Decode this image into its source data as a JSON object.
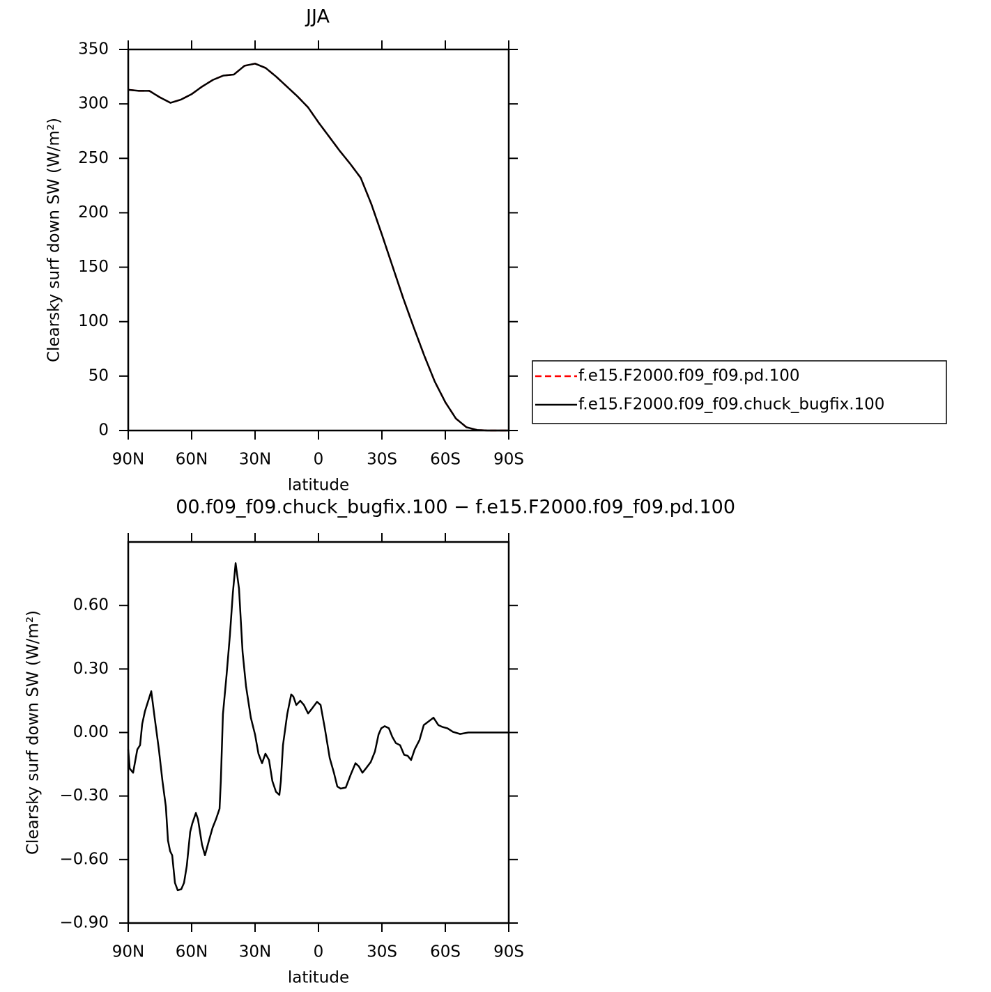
{
  "chart_data": [
    {
      "type": "line",
      "title": "JJA",
      "xlabel": "latitude",
      "ylabel": "Clearsky surf down SW (W/m²)",
      "x": [
        90,
        85,
        80,
        75,
        70,
        65,
        60,
        55,
        50,
        45,
        40,
        35,
        30,
        25,
        20,
        15,
        10,
        5,
        0,
        -5,
        -10,
        -15,
        -20,
        -25,
        -30,
        -35,
        -40,
        -45,
        -50,
        -55,
        -60,
        -65,
        -70,
        -75,
        -80,
        -85,
        -90
      ],
      "series": [
        {
          "name": "f.e15.F2000.f09_f09.pd.100",
          "color": "#ff0000",
          "dash": "dashed",
          "values": [
            313,
            312,
            312,
            306,
            301,
            304,
            309,
            316,
            322,
            326,
            327,
            335,
            337,
            333,
            325,
            316,
            307,
            297,
            283,
            270,
            257,
            245,
            232,
            208,
            180,
            151,
            122,
            95,
            69,
            45,
            26,
            11,
            3,
            0.5,
            0,
            0,
            0
          ]
        },
        {
          "name": "f.e15.F2000.f09_f09.chuck_bugfix.100",
          "color": "#000000",
          "dash": "solid",
          "values": [
            313,
            312,
            312,
            306,
            301,
            304,
            309,
            316,
            322,
            326,
            327,
            335,
            337,
            333,
            325,
            316,
            307,
            297,
            283,
            270,
            257,
            245,
            232,
            208,
            180,
            151,
            122,
            95,
            69,
            45,
            26,
            11,
            3,
            0.5,
            0,
            0,
            0
          ]
        }
      ],
      "xlim": [
        90,
        -90
      ],
      "xticks": [
        {
          "value": 90,
          "label": "90N"
        },
        {
          "value": 60,
          "label": "60N"
        },
        {
          "value": 30,
          "label": "30N"
        },
        0,
        {
          "value": -30,
          "label": "30S"
        },
        {
          "value": -60,
          "label": "60S"
        },
        {
          "value": -90,
          "label": "90S"
        }
      ],
      "ylim": [
        0,
        350
      ],
      "yticks": [
        0,
        50,
        100,
        150,
        200,
        250,
        300,
        350
      ],
      "legend": "outside-right"
    },
    {
      "type": "line",
      "title": "00.f09_f09.chuck_bugfix.100 − f.e15.F2000.f09_f09.pd.100",
      "xlabel": "latitude",
      "ylabel": "Clearsky surf down SW (W/m²)",
      "x": [
        90,
        89.3,
        87.7,
        85.7,
        84.4,
        83.4,
        82.1,
        79.1,
        77.5,
        75.5,
        73.8,
        72.2,
        71.2,
        70.2,
        69.2,
        67.9,
        66.6,
        64.9,
        63.6,
        62.3,
        60.7,
        59.7,
        58,
        57,
        55.1,
        53.7,
        51.8,
        50.1,
        48.5,
        46.8,
        46.2,
        45.2,
        43.5,
        41.9,
        40.5,
        39.2,
        37.6,
        35.9,
        34.3,
        32,
        30,
        28.4,
        26.7,
        25.1,
        23.4,
        21.8,
        20.1,
        18.5,
        17.8,
        16.8,
        14.8,
        12.9,
        11.9,
        10.5,
        8.6,
        6.9,
        4.9,
        3.3,
        0.7,
        -1,
        -3,
        -5.3,
        -7.3,
        -8.9,
        -10.5,
        -12.9,
        -15.2,
        -17.5,
        -19.1,
        -20.8,
        -22.4,
        -24.7,
        -26.7,
        -28.4,
        -29.7,
        -31.3,
        -33.3,
        -34.9,
        -36.6,
        -38.6,
        -40.5,
        -42.2,
        -43.8,
        -45.5,
        -47.8,
        -49.8,
        -51.8,
        -54.4,
        -56.7,
        -58.7,
        -61,
        -63.6,
        -67,
        -70.9,
        -76.8,
        -90
      ],
      "series": [
        {
          "color": "#000000",
          "dash": "solid",
          "values": [
            -0.08,
            -0.17,
            -0.19,
            -0.08,
            -0.06,
            0.04,
            0.1,
            0.195,
            0.07,
            -0.08,
            -0.23,
            -0.35,
            -0.51,
            -0.56,
            -0.58,
            -0.71,
            -0.745,
            -0.74,
            -0.71,
            -0.63,
            -0.47,
            -0.43,
            -0.38,
            -0.41,
            -0.53,
            -0.58,
            -0.51,
            -0.45,
            -0.41,
            -0.36,
            -0.23,
            0.086,
            0.27,
            0.46,
            0.66,
            0.8,
            0.68,
            0.38,
            0.22,
            0.07,
            -0.01,
            -0.1,
            -0.145,
            -0.1,
            -0.13,
            -0.23,
            -0.28,
            -0.295,
            -0.23,
            -0.06,
            0.086,
            0.18,
            0.17,
            0.13,
            0.15,
            0.13,
            0.09,
            0.11,
            0.145,
            0.13,
            0.02,
            -0.12,
            -0.19,
            -0.255,
            -0.265,
            -0.26,
            -0.2,
            -0.145,
            -0.16,
            -0.19,
            -0.17,
            -0.14,
            -0.09,
            -0.01,
            0.02,
            0.03,
            0.02,
            -0.02,
            -0.05,
            -0.06,
            -0.105,
            -0.11,
            -0.13,
            -0.08,
            -0.035,
            0.035,
            0.05,
            0.07,
            0.035,
            0.026,
            0.02,
            0.003,
            -0.007,
            0,
            0,
            0
          ]
        }
      ],
      "xlim": [
        90,
        -90
      ],
      "xticks": [
        {
          "value": 90,
          "label": "90N"
        },
        {
          "value": 60,
          "label": "60N"
        },
        {
          "value": 30,
          "label": "30N"
        },
        0,
        {
          "value": -30,
          "label": "30S"
        },
        {
          "value": -60,
          "label": "60S"
        },
        {
          "value": -90,
          "label": "90S"
        }
      ],
      "ylim": [
        -0.9,
        0.9
      ],
      "yticks": [
        {
          "value": -0.9,
          "label": "−0.90"
        },
        {
          "value": -0.6,
          "label": "−0.60"
        },
        {
          "value": -0.3,
          "label": "−0.30"
        },
        {
          "value": 0,
          "label": "0.00"
        },
        {
          "value": 0.3,
          "label": "0.30"
        },
        {
          "value": 0.6,
          "label": "0.60"
        }
      ]
    }
  ]
}
